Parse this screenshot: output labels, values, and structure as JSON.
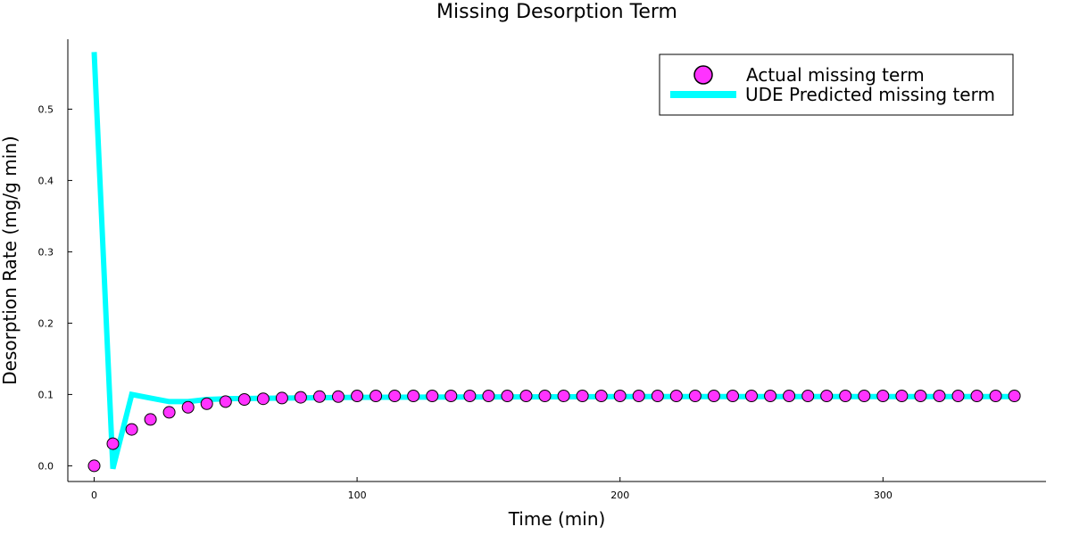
{
  "chart_data": {
    "type": "scatter+line",
    "title": "Missing Desorption Term",
    "xlabel": "Time (min)",
    "ylabel": "Desorption Rate (mg/g min)",
    "xlim": [
      -10,
      362
    ],
    "ylim": [
      -0.022,
      0.598
    ],
    "xticks": [
      0,
      100,
      200,
      300
    ],
    "yticks": [
      0.0,
      0.1,
      0.2,
      0.3,
      0.4,
      0.5
    ],
    "xtick_labels": [
      "0",
      "100",
      "200",
      "300"
    ],
    "ytick_labels": [
      "0.0",
      "0.1",
      "0.2",
      "0.3",
      "0.4",
      "0.5"
    ],
    "grid": false,
    "legend_position": "top-right",
    "series": [
      {
        "name": "Actual missing term",
        "kind": "scatter",
        "color": "#ff33ff",
        "edge_color": "#000000",
        "x": [
          0,
          7.14,
          14.29,
          21.43,
          28.57,
          35.71,
          42.86,
          50,
          57.14,
          64.29,
          71.43,
          78.57,
          85.71,
          92.86,
          100,
          107.14,
          114.29,
          121.43,
          128.57,
          135.71,
          142.86,
          150,
          157.14,
          164.29,
          171.43,
          178.57,
          185.71,
          192.86,
          200,
          207.14,
          214.29,
          221.43,
          228.57,
          235.71,
          242.86,
          250,
          257.14,
          264.29,
          271.43,
          278.57,
          285.71,
          292.86,
          300,
          307.14,
          314.29,
          321.43,
          328.57,
          335.71,
          342.86,
          350
        ],
        "y": [
          0.0,
          0.031,
          0.051,
          0.065,
          0.075,
          0.082,
          0.087,
          0.09,
          0.093,
          0.094,
          0.095,
          0.096,
          0.097,
          0.097,
          0.098,
          0.098,
          0.098,
          0.098,
          0.098,
          0.098,
          0.098,
          0.098,
          0.098,
          0.098,
          0.098,
          0.098,
          0.098,
          0.098,
          0.098,
          0.098,
          0.098,
          0.098,
          0.098,
          0.098,
          0.098,
          0.098,
          0.098,
          0.098,
          0.098,
          0.098,
          0.098,
          0.098,
          0.098,
          0.098,
          0.098,
          0.098,
          0.098,
          0.098,
          0.098,
          0.098
        ]
      },
      {
        "name": "UDE Predicted missing term",
        "kind": "line",
        "color": "#00ffff",
        "x": [
          0,
          7.14,
          14.29,
          21.43,
          28.57,
          35.71,
          42.86,
          50,
          100,
          200,
          300,
          350
        ],
        "y": [
          0.58,
          -0.004,
          0.1,
          0.095,
          0.09,
          0.09,
          0.093,
          0.094,
          0.096,
          0.097,
          0.097,
          0.097
        ]
      }
    ]
  }
}
